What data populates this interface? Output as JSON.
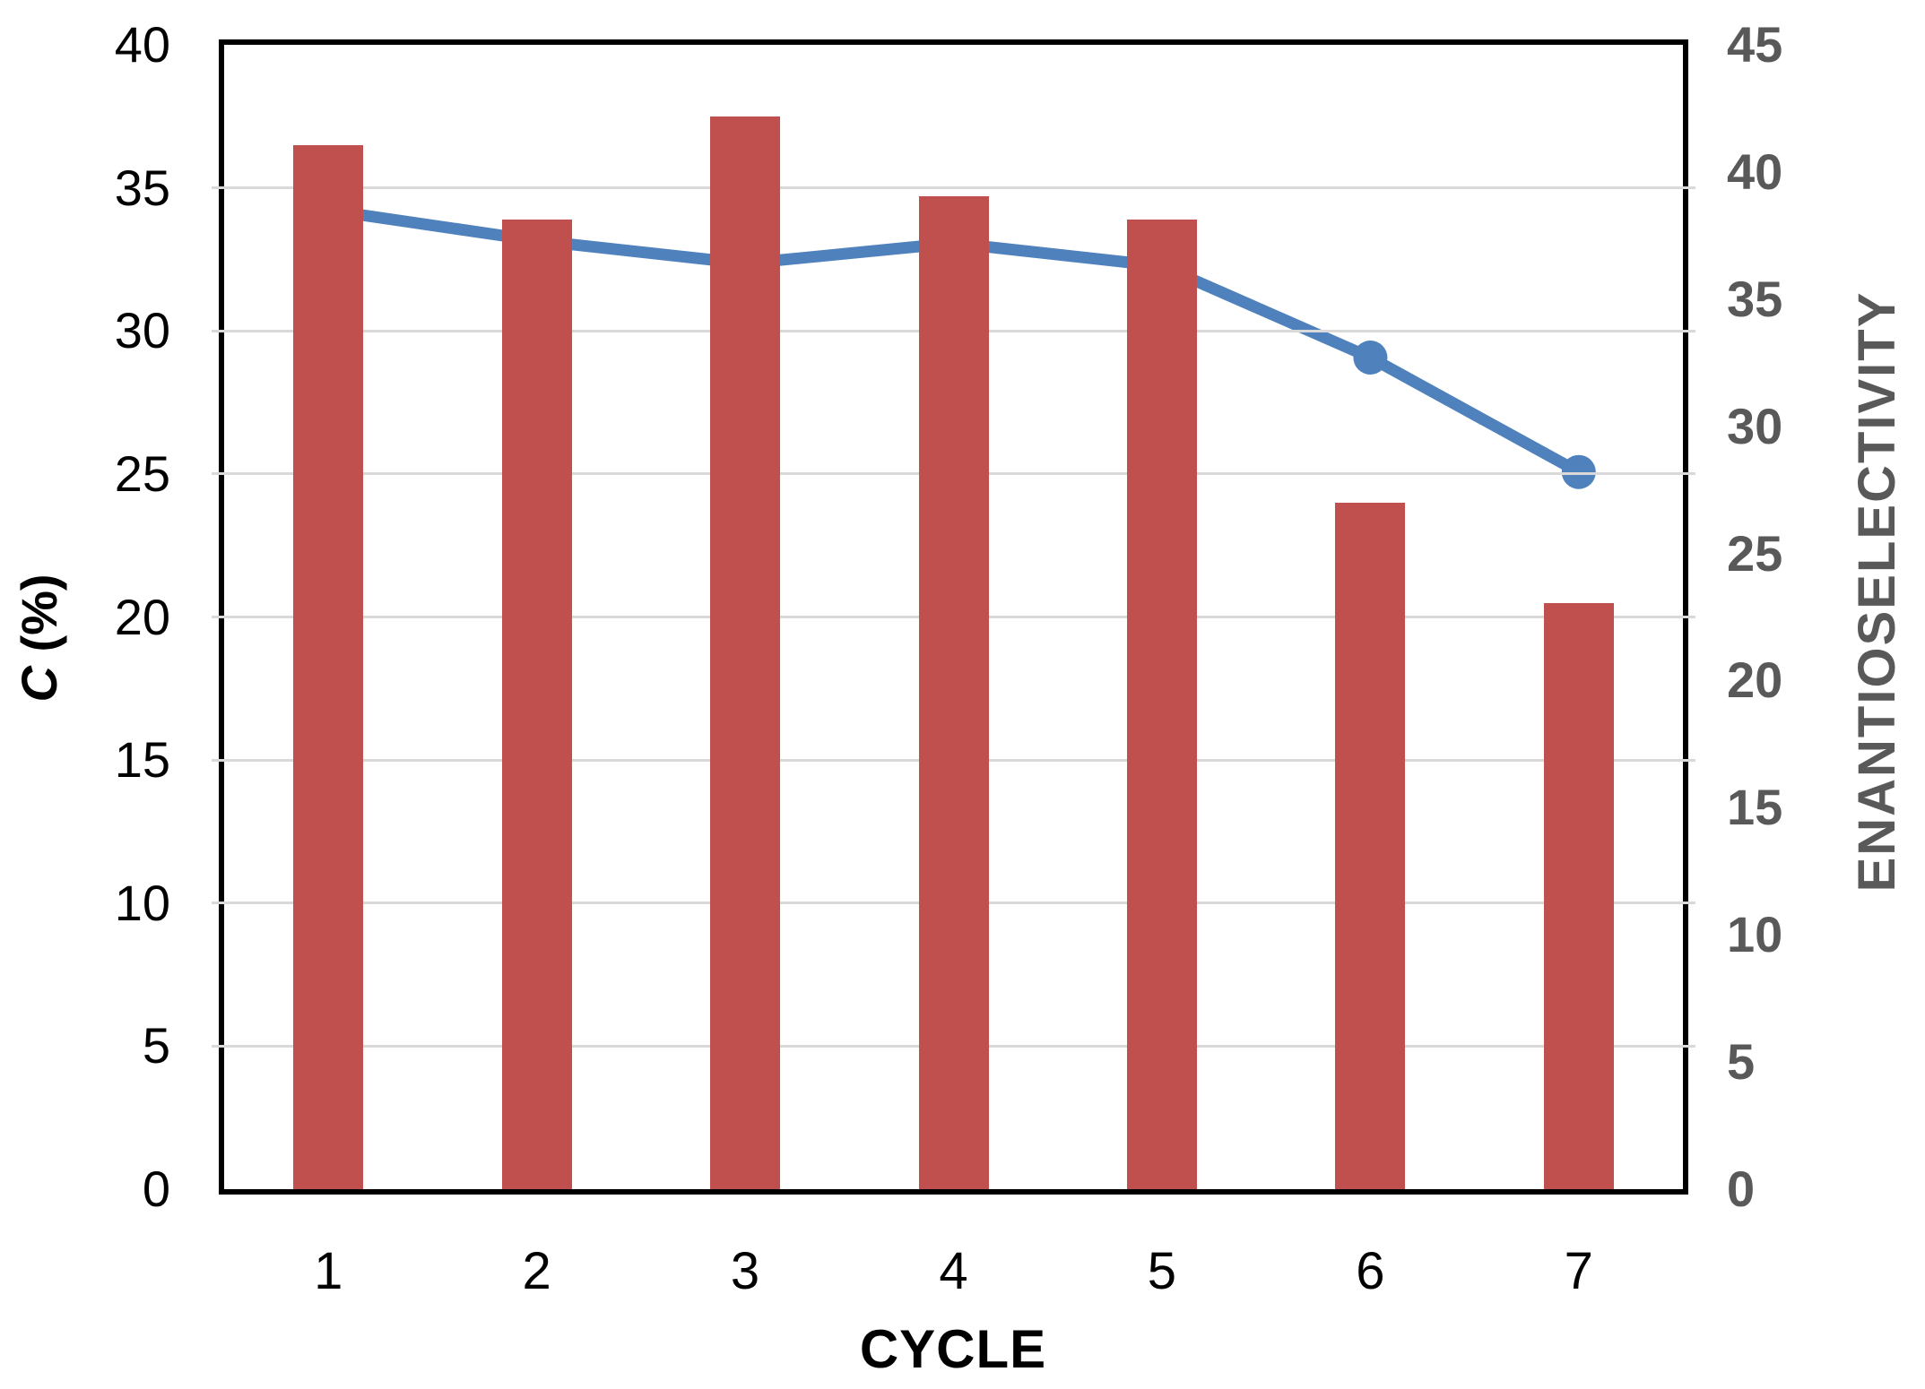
{
  "chart_data": {
    "type": "combo",
    "categories": [
      "1",
      "2",
      "3",
      "4",
      "5",
      "6",
      "7"
    ],
    "series": [
      {
        "name": "C (%)",
        "type": "bar",
        "axis": "left",
        "color": "#C0504D",
        "values": [
          36.5,
          33.9,
          37.5,
          34.7,
          33.9,
          24.0,
          20.5
        ]
      },
      {
        "name": "ENANTIOSELECTIVITY",
        "type": "line",
        "axis": "right",
        "color": "#4F81BD",
        "values": [
          38.5,
          37.3,
          36.4,
          37.2,
          36.3,
          32.7,
          28.2
        ]
      }
    ],
    "title": "",
    "xlabel": "CYCLE",
    "left_axis": {
      "label": "C (%)",
      "label_italic": "C",
      "label_rest": " (%)",
      "min": 0,
      "max": 40,
      "tick_step": 5,
      "tick_labels": [
        "0",
        "5",
        "10",
        "15",
        "20",
        "25",
        "30",
        "35",
        "40"
      ]
    },
    "right_axis": {
      "label": "ENANTIOSELECTIVITY",
      "min": 0,
      "max": 45,
      "tick_step": 5,
      "tick_labels": [
        "0",
        "5",
        "10",
        "15",
        "20",
        "25",
        "30",
        "35",
        "40",
        "45"
      ]
    },
    "grid": true,
    "legend_position": "none",
    "colors": {
      "bar_fill": "#C0504D",
      "line_stroke": "#4F81BD",
      "gridline": "#D9D9D9",
      "axis_frame": "#000000",
      "left_tick_text": "#000000",
      "right_tick_text": "#595959",
      "x_tick_text": "#000000"
    }
  }
}
